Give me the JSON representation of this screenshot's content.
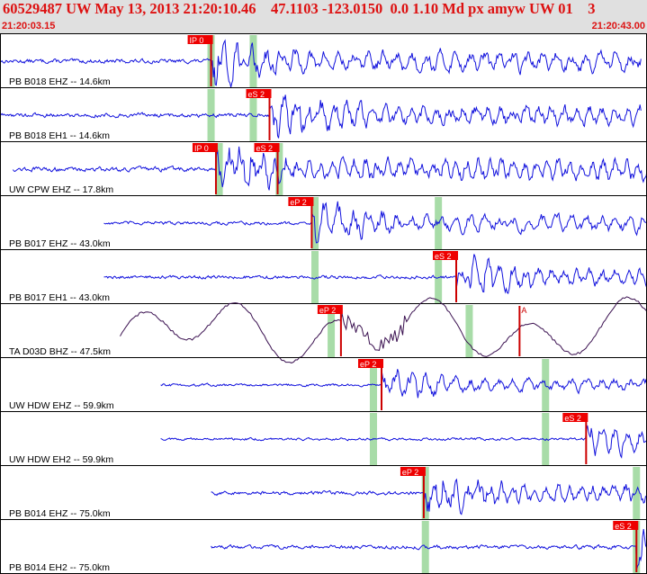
{
  "header": {
    "title": "60529487 UW May 13, 2013 21:20:10.46    47.1103 -123.0150  0.0 1.10 Md px amyw UW 01    3",
    "time_start": "21:20:03.15",
    "time_end": "21:20:43.00"
  },
  "colors": {
    "header_bg": "#e0e0e0",
    "header_text": "#dd1111",
    "trace": "#1111dd",
    "trace_bb": "#3a1050",
    "pick_box": "#ee0000",
    "pick_text": "#ffeeee",
    "pick_line": "#cc0000",
    "marker": "#a8dca8",
    "curve": "#000000"
  },
  "chart_data": {
    "type": "line",
    "x_unit": "s",
    "x_range": [
      0.0,
      39.85
    ],
    "traces": [
      {
        "label": "PB B018 EHZ -- 14.6km",
        "start": 0.0,
        "end": 39.5,
        "onset": 13.0,
        "style": "hf",
        "amp": 0.55,
        "picks": [
          {
            "name": "IP 0",
            "t": 13.0,
            "type": "P"
          }
        ],
        "markers": [
          13.0,
          15.6
        ]
      },
      {
        "label": "PB B018 EH1 -- 14.6km",
        "start": 0.0,
        "end": 39.5,
        "onset": 16.6,
        "style": "hf",
        "amp": 0.55,
        "picks": [
          {
            "name": "eS 2",
            "t": 16.6,
            "type": "S"
          }
        ],
        "markers": [
          13.0,
          15.6
        ]
      },
      {
        "label": "UW CPW EHZ -- 17.8km",
        "start": 0.8,
        "end": 40.0,
        "onset": 13.3,
        "style": "hf",
        "amp": 0.6,
        "picks": [
          {
            "name": "IP 0",
            "t": 13.3,
            "type": "P"
          },
          {
            "name": "eS 2",
            "t": 17.1,
            "type": "S"
          }
        ],
        "markers": [
          13.5,
          17.2
        ]
      },
      {
        "label": "PB B017 EHZ -- 43.0km",
        "start": 6.4,
        "end": 45.4,
        "onset": 19.2,
        "style": "hf",
        "amp": 0.45,
        "picks": [
          {
            "name": "eP 2",
            "t": 19.2,
            "type": "P"
          }
        ],
        "markers": [
          19.4,
          27.0
        ]
      },
      {
        "label": "PB B017 EH1 -- 43.0km",
        "start": 6.4,
        "end": 45.4,
        "onset": 28.1,
        "style": "hf",
        "amp": 0.45,
        "picks": [
          {
            "name": "eS 2",
            "t": 28.1,
            "type": "S"
          }
        ],
        "markers": [
          19.4,
          27.0
        ]
      },
      {
        "label": "TA D03D BHZ -- 47.5km",
        "start": 7.4,
        "end": 46.9,
        "onset": 21.0,
        "style": "bb",
        "amp": 0.7,
        "picks": [
          {
            "name": "eP 2",
            "t": 21.0,
            "type": "P"
          },
          {
            "name": "A",
            "t": 32.0,
            "type": "A"
          }
        ],
        "markers": [
          20.4,
          28.9
        ]
      },
      {
        "label": "UW HDW EHZ -- 59.9km",
        "start": 9.9,
        "end": 49.5,
        "onset": 23.5,
        "style": "hf",
        "amp": 0.35,
        "picks": [
          {
            "name": "eP 2",
            "t": 23.5,
            "type": "P"
          }
        ],
        "markers": [
          23.0,
          33.6
        ]
      },
      {
        "label": "UW HDW EH2 -- 59.9km",
        "start": 9.9,
        "end": 49.5,
        "onset": 36.1,
        "style": "hf",
        "amp": 0.35,
        "picks": [
          {
            "name": "eS 2",
            "t": 36.1,
            "type": "S"
          }
        ],
        "markers": [
          23.0,
          33.6
        ]
      },
      {
        "label": "PB B014 EHZ -- 75.0km",
        "start": 13.0,
        "end": 52.5,
        "onset": 26.1,
        "style": "hf",
        "amp": 0.5,
        "picks": [
          {
            "name": "eP 2",
            "t": 26.1,
            "type": "P"
          }
        ],
        "markers": [
          26.2,
          39.2
        ]
      },
      {
        "label": "PB B014 EH2 -- 75.0km",
        "start": 13.0,
        "end": 52.5,
        "onset": 39.2,
        "style": "hf",
        "amp": 0.5,
        "picks": [
          {
            "name": "eS 2",
            "t": 39.2,
            "type": "S"
          }
        ],
        "markers": [
          26.2,
          39.2
        ]
      }
    ]
  }
}
